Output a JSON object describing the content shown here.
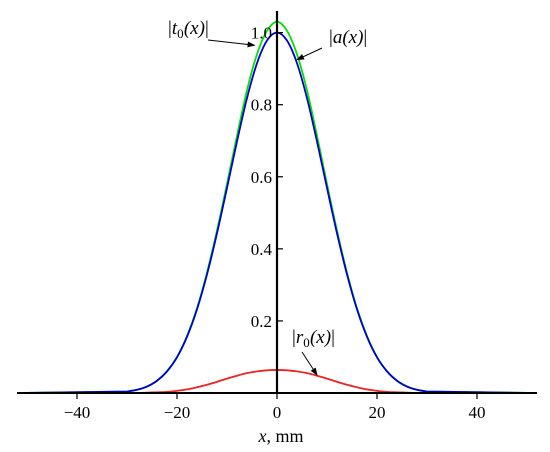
{
  "chart_data": {
    "type": "line",
    "title": "",
    "xlabel": {
      "var": "x",
      "unit": ", mm"
    },
    "ylabel": "",
    "xlim": [
      -52,
      52
    ],
    "ylim": [
      0,
      1.06
    ],
    "grid": false,
    "x_ticks": [
      -40,
      -20,
      0,
      20,
      40
    ],
    "x_tick_labels": [
      "−40",
      "−20",
      "0",
      "20",
      "40"
    ],
    "y_ticks": [
      0.2,
      0.4,
      0.6,
      0.8,
      1.0
    ],
    "y_tick_labels": [
      "0.2",
      "0.4",
      "0.6",
      "0.8",
      "1.0"
    ],
    "series": [
      {
        "name": "|t₀(x)|",
        "color": "#00e000",
        "x": [
          -30,
          -28,
          -26,
          -24,
          -22,
          -20,
          -18,
          -16,
          -14,
          -12,
          -10,
          -8,
          -6,
          -4,
          -2,
          0,
          2,
          4,
          6,
          8,
          10,
          12,
          14,
          16,
          18,
          20,
          22,
          24,
          26,
          28,
          30
        ],
        "y": [
          0.004,
          0.009,
          0.018,
          0.034,
          0.06,
          0.1,
          0.158,
          0.235,
          0.334,
          0.451,
          0.58,
          0.714,
          0.84,
          0.94,
          1.005,
          1.03,
          1.005,
          0.94,
          0.84,
          0.714,
          0.58,
          0.451,
          0.334,
          0.235,
          0.158,
          0.1,
          0.06,
          0.034,
          0.018,
          0.009,
          0.004
        ]
      },
      {
        "name": "|a(x)|",
        "color": "#0000cc",
        "x": [
          -30,
          -28,
          -26,
          -24,
          -22,
          -20,
          -18,
          -16,
          -14,
          -12,
          -10,
          -8,
          -6,
          -4,
          -2,
          0,
          2,
          4,
          6,
          8,
          10,
          12,
          14,
          16,
          18,
          20,
          22,
          24,
          26,
          28,
          30
        ],
        "y": [
          0.004,
          0.009,
          0.018,
          0.034,
          0.06,
          0.099,
          0.156,
          0.232,
          0.329,
          0.443,
          0.569,
          0.698,
          0.818,
          0.915,
          0.978,
          1.0,
          0.978,
          0.915,
          0.818,
          0.698,
          0.569,
          0.443,
          0.329,
          0.232,
          0.156,
          0.099,
          0.06,
          0.034,
          0.018,
          0.009,
          0.004
        ]
      },
      {
        "name": "|r₀(x)|",
        "color": "#ee2222",
        "x": [
          -30,
          -28,
          -26,
          -24,
          -22,
          -20,
          -18,
          -16,
          -14,
          -12,
          -10,
          -8,
          -6,
          -4,
          -2,
          0,
          2,
          4,
          6,
          8,
          10,
          12,
          14,
          16,
          18,
          20,
          22,
          24,
          26,
          28,
          30
        ],
        "y": [
          0.0,
          0.0,
          0.001,
          0.002,
          0.003,
          0.006,
          0.01,
          0.016,
          0.023,
          0.031,
          0.04,
          0.048,
          0.055,
          0.06,
          0.063,
          0.064,
          0.063,
          0.06,
          0.055,
          0.048,
          0.04,
          0.031,
          0.023,
          0.016,
          0.01,
          0.006,
          0.003,
          0.002,
          0.001,
          0.0,
          0.0
        ]
      }
    ],
    "annotations": [
      {
        "series": "t0",
        "base": "t",
        "sub": "0",
        "paren": "(x)",
        "bar": "|",
        "target": [
          -4.5,
          0.965
        ]
      },
      {
        "series": "a",
        "base": "a",
        "sub": "",
        "paren": "(x)",
        "bar": "|",
        "target": [
          4.0,
          0.925
        ]
      },
      {
        "series": "r0",
        "base": "r",
        "sub": "0",
        "paren": "(x)",
        "bar": "|",
        "target": [
          8.0,
          0.05
        ]
      }
    ]
  }
}
